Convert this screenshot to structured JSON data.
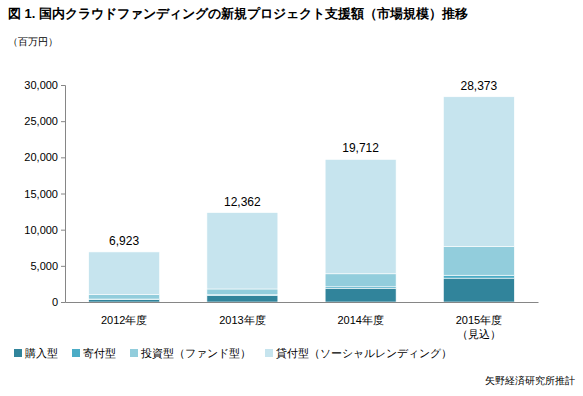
{
  "chart_data": {
    "type": "bar",
    "stacked": true,
    "title": "図 1. 国内クラウドファンディングの新規プロジェクト支援額（市場規模）推移",
    "y_label": "（百万円）",
    "source": "矢野経済研究所推計",
    "categories": [
      "2012年度",
      "2013年度",
      "2014年度",
      "2015年度\n（見込）"
    ],
    "series": [
      {
        "name": "購入型",
        "color": "#31849b",
        "values": [
          350,
          900,
          1900,
          3300
        ]
      },
      {
        "name": "寄付型",
        "color": "#4bacc6",
        "values": [
          60,
          100,
          200,
          400
        ]
      },
      {
        "name": "投資型（ファンド型）",
        "color": "#92cddc",
        "values": [
          600,
          800,
          1800,
          4000
        ]
      },
      {
        "name": "貸付型（ソーシャルレンディング）",
        "color": "#c6e4ee",
        "values": [
          5913,
          10562,
          15812,
          20673
        ]
      }
    ],
    "totals": {
      "values": [
        6923,
        12362,
        19712,
        28373
      ],
      "value_labels": [
        "6,923",
        "12,362",
        "19,712",
        "28,373"
      ]
    },
    "ylim": [
      0,
      30000
    ],
    "yticks": [
      0,
      {
        "value": 5000,
        "label": "5,000"
      },
      {
        "value": 10000,
        "label": "10,000"
      },
      {
        "value": 15000,
        "label": "15,000"
      },
      {
        "value": 20000,
        "label": "20,000"
      },
      {
        "value": 25000,
        "label": "25,000"
      },
      {
        "value": 30000,
        "label": "30,000"
      }
    ],
    "grid": false,
    "legend": "bottom"
  }
}
